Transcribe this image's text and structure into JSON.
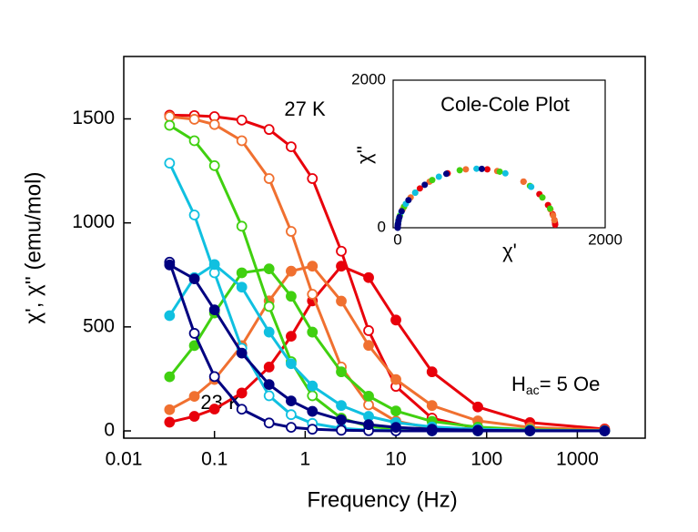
{
  "chart_data": [
    {
      "type": "scatter",
      "x_label": "Frequency (Hz)",
      "y_label": "χ', χ'' (emu/mol)",
      "log_x": true,
      "xlim": [
        0.01,
        5600
      ],
      "xticks": [
        0.01,
        0.1,
        1,
        10,
        100,
        1000
      ],
      "ylim": [
        -35,
        1800
      ],
      "yticks": [
        0,
        500,
        1000,
        1500
      ],
      "annotations": [
        {
          "text": "27 K"
        },
        {
          "text": "23 K"
        },
        {
          "parts": [
            "H",
            "ac",
            "= 5 Oe"
          ]
        }
      ],
      "x": [
        0.032,
        0.06,
        0.1,
        0.2,
        0.4,
        0.7,
        1.2,
        2.5,
        5,
        10,
        25,
        80,
        300,
        2000
      ],
      "series": [
        {
          "color": "#e8000b",
          "marker": "open",
          "values": [
            1518,
            1516,
            1511,
            1494,
            1449,
            1366,
            1213,
            864,
            482,
            214,
            61,
            11,
            2,
            0
          ]
        },
        {
          "color": "#e8000b",
          "marker": "filled",
          "values": [
            42,
            70,
            105,
            182,
            307,
            455,
            625,
            792,
            737,
            533,
            284,
            115,
            40,
            9
          ]
        },
        {
          "color": "#f07030",
          "marker": "open",
          "values": [
            1511,
            1498,
            1473,
            1395,
            1213,
            959,
            657,
            307,
            125,
            47,
            12,
            2,
            0,
            0
          ]
        },
        {
          "color": "#f07030",
          "marker": "filled",
          "values": [
            102,
            166,
            247,
            410,
            625,
            768,
            792,
            624,
            411,
            247,
            122,
            48,
            17,
            4
          ]
        },
        {
          "color": "#40d010",
          "marker": "open",
          "values": [
            1469,
            1395,
            1275,
            984,
            598,
            333,
            169,
            61,
            22,
            8,
            2,
            0,
            0,
            0
          ]
        },
        {
          "color": "#40d010",
          "marker": "filled",
          "values": [
            260,
            410,
            567,
            760,
            779,
            647,
            475,
            284,
            167,
            96,
            46,
            18,
            6,
            1
          ]
        },
        {
          "color": "#10c0e0",
          "marker": "open",
          "values": [
            1287,
            1038,
            760,
            397,
            169,
            78,
            36,
            12,
            4,
            1,
            0,
            0,
            0,
            0
          ]
        },
        {
          "color": "#10c0e0",
          "marker": "filled",
          "values": [
            554,
            737,
            800,
            691,
            475,
            323,
            216,
            122,
            70,
            40,
            19,
            8,
            3,
            1
          ]
        },
        {
          "color": "#000080",
          "marker": "open",
          "values": [
            811,
            469,
            261,
            104,
            38,
            17,
            8,
            3,
            1,
            0,
            0,
            0,
            0,
            0
          ]
        },
        {
          "color": "#000080",
          "marker": "filled",
          "values": [
            798,
            731,
            582,
            374,
            223,
            144,
            94,
            53,
            30,
            17,
            8,
            3,
            1,
            0
          ]
        }
      ]
    },
    {
      "type": "scatter",
      "title": "Cole-Cole Plot",
      "x_label": "χ'",
      "y_label": "χ''",
      "xlim": [
        0,
        2000
      ],
      "xticks": [
        0,
        2000
      ],
      "ylim": [
        0,
        2000
      ],
      "yticks": [
        0,
        2000
      ]
    }
  ]
}
